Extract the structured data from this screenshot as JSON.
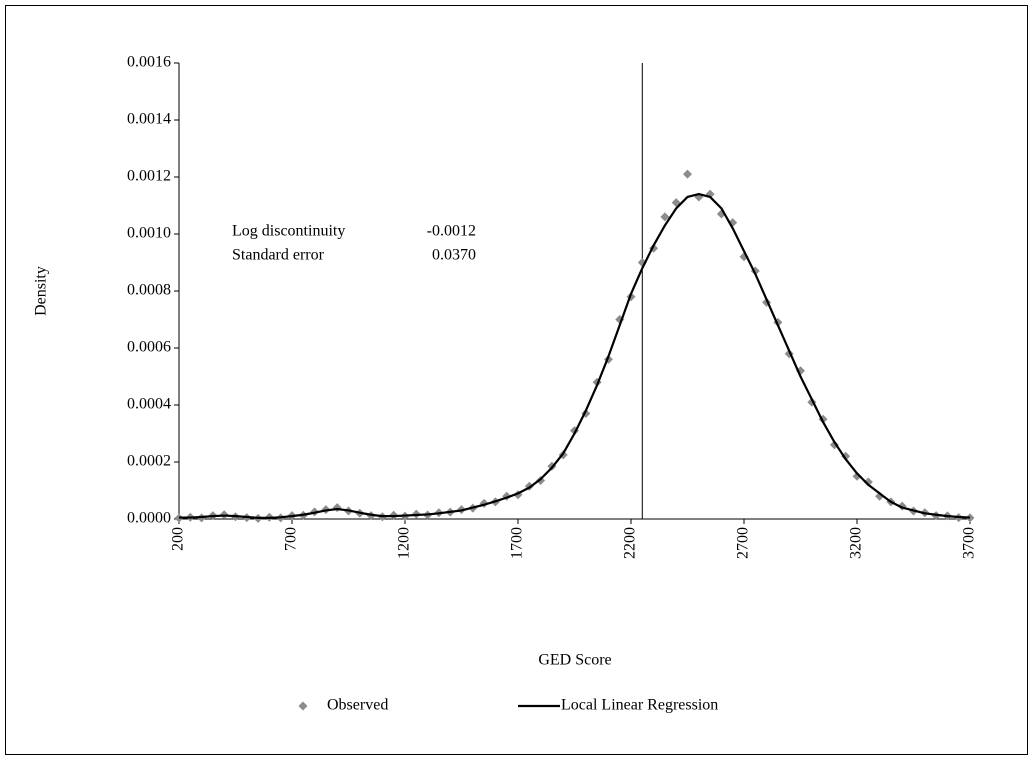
{
  "chart_data": {
    "type": "scatter-line",
    "xlabel": "GED Score",
    "ylabel": "Density",
    "x": [
      200,
      250,
      300,
      350,
      400,
      450,
      500,
      550,
      600,
      650,
      700,
      750,
      800,
      850,
      900,
      950,
      1000,
      1050,
      1100,
      1150,
      1200,
      1250,
      1300,
      1350,
      1400,
      1450,
      1500,
      1550,
      1600,
      1650,
      1700,
      1750,
      1800,
      1850,
      1900,
      1950,
      2000,
      2050,
      2100,
      2150,
      2200,
      2250,
      2300,
      2350,
      2400,
      2450,
      2500,
      2550,
      2600,
      2650,
      2700,
      2750,
      2800,
      2850,
      2900,
      2950,
      3000,
      3050,
      3100,
      3150,
      3200,
      3250,
      3300,
      3350,
      3400,
      3450,
      3500,
      3550,
      3600,
      3650,
      3700
    ],
    "series": [
      {
        "name": "Observed",
        "color": "#8c8c8c",
        "kind": "scatter",
        "values": [
          3e-06,
          6e-06,
          4e-06,
          1.2e-05,
          1.5e-05,
          8e-06,
          5e-06,
          2e-06,
          6e-06,
          4e-06,
          1.2e-05,
          1.3e-05,
          2.5e-05,
          3.3e-05,
          4e-05,
          2.8e-05,
          2e-05,
          1.2e-05,
          8e-06,
          1.3e-05,
          1e-05,
          1.7e-05,
          1.4e-05,
          2.2e-05,
          2.4e-05,
          3.3e-05,
          3.8e-05,
          5.5e-05,
          6e-05,
          8e-05,
          8.5e-05,
          0.000115,
          0.000135,
          0.000185,
          0.000225,
          0.00031,
          0.00037,
          0.00048,
          0.00056,
          0.0007,
          0.00078,
          0.0009,
          0.00095,
          0.00106,
          0.00111,
          0.00121,
          0.00113,
          0.00114,
          0.00107,
          0.00104,
          0.00092,
          0.00087,
          0.00076,
          0.00069,
          0.00058,
          0.00052,
          0.00041,
          0.00035,
          0.00026,
          0.00022,
          0.00015,
          0.00013,
          8e-05,
          6e-05,
          4.5e-05,
          2.8e-05,
          2.2e-05,
          1.2e-05,
          1.1e-05,
          5e-06,
          4e-06
        ]
      },
      {
        "name": "Local Linear Regression",
        "color": "#000000",
        "kind": "line",
        "values": [
          5e-06,
          5e-06,
          7e-06,
          1e-05,
          1.2e-05,
          1e-05,
          7e-06,
          4e-06,
          4e-06,
          6e-06,
          1e-05,
          1.5e-05,
          2.2e-05,
          3e-05,
          3.5e-05,
          3e-05,
          2.2e-05,
          1.5e-05,
          1e-05,
          1e-05,
          1.2e-05,
          1.4e-05,
          1.6e-05,
          2e-05,
          2.5e-05,
          3e-05,
          4e-05,
          5e-05,
          6.2e-05,
          7.5e-05,
          9e-05,
          0.00011,
          0.00014,
          0.00018,
          0.00023,
          0.0003,
          0.00038,
          0.00047,
          0.00057,
          0.00068,
          0.00079,
          0.00088,
          0.00096,
          0.00103,
          0.00109,
          0.00113,
          0.00114,
          0.00113,
          0.00109,
          0.00102,
          0.00094,
          0.00086,
          0.00077,
          0.00068,
          0.00059,
          0.0005,
          0.00042,
          0.00034,
          0.00027,
          0.00021,
          0.00016,
          0.00012,
          9e-05,
          6e-05,
          4e-05,
          3e-05,
          2e-05,
          1.5e-05,
          1e-05,
          7e-06,
          5e-06
        ]
      }
    ],
    "cutoff": 2250,
    "annotations": [
      {
        "label": "Log discontinuity",
        "value": "-0.0012"
      },
      {
        "label": "Standard error",
        "value": "0.0370"
      }
    ],
    "xlim": [
      200,
      3700
    ],
    "xticks": [
      200,
      700,
      1200,
      1700,
      2200,
      2700,
      3200,
      3700
    ],
    "ylim": [
      0,
      0.0016
    ],
    "yticks": [
      {
        "value": 0,
        "label": "0.0000"
      },
      {
        "value": 0.0002,
        "label": "0.0002"
      },
      {
        "value": 0.0004,
        "label": "0.0004"
      },
      {
        "value": 0.0006,
        "label": "0.0006"
      },
      {
        "value": 0.0008,
        "label": "0.0008"
      },
      {
        "value": 0.001,
        "label": "0.0010"
      },
      {
        "value": 0.0012,
        "label": "0.0012"
      },
      {
        "value": 0.0014,
        "label": "0.0014"
      },
      {
        "value": 0.0016,
        "label": "0.0016"
      }
    ],
    "legend": "bottom"
  }
}
